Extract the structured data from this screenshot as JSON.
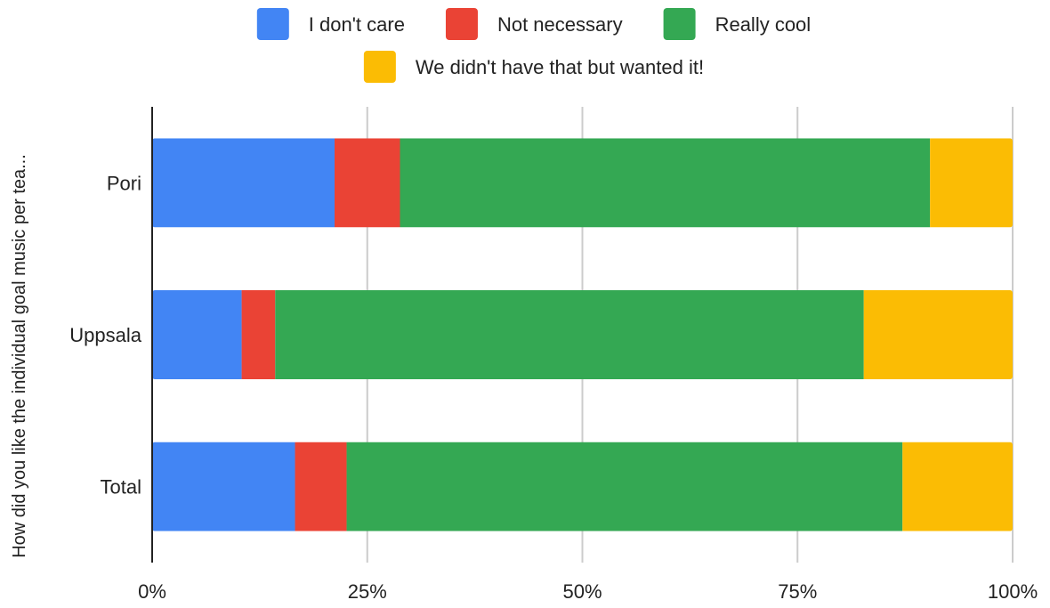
{
  "chart_data": {
    "type": "bar",
    "orientation": "horizontal",
    "stacked": "percent",
    "ylabel": "How did you like the individual goal music per tea...",
    "xlabel": "",
    "xlim": [
      0,
      100
    ],
    "x_ticks": [
      "0%",
      "25%",
      "50%",
      "75%",
      "100%"
    ],
    "grid": true,
    "legend_position": "top",
    "categories": [
      "Pori",
      "Uppsala",
      "Total"
    ],
    "series": [
      {
        "name": "I don't care",
        "color": "#4285F4",
        "values": [
          21.2,
          10.4,
          16.6
        ]
      },
      {
        "name": "Not necessary",
        "color": "#EA4335",
        "values": [
          7.6,
          3.9,
          6.0
        ]
      },
      {
        "name": "Really cool",
        "color": "#34A853",
        "values": [
          61.6,
          68.4,
          64.6
        ]
      },
      {
        "name": "We didn't have that but wanted it!",
        "color": "#FBBC04",
        "values": [
          9.6,
          17.3,
          12.8
        ]
      }
    ]
  }
}
